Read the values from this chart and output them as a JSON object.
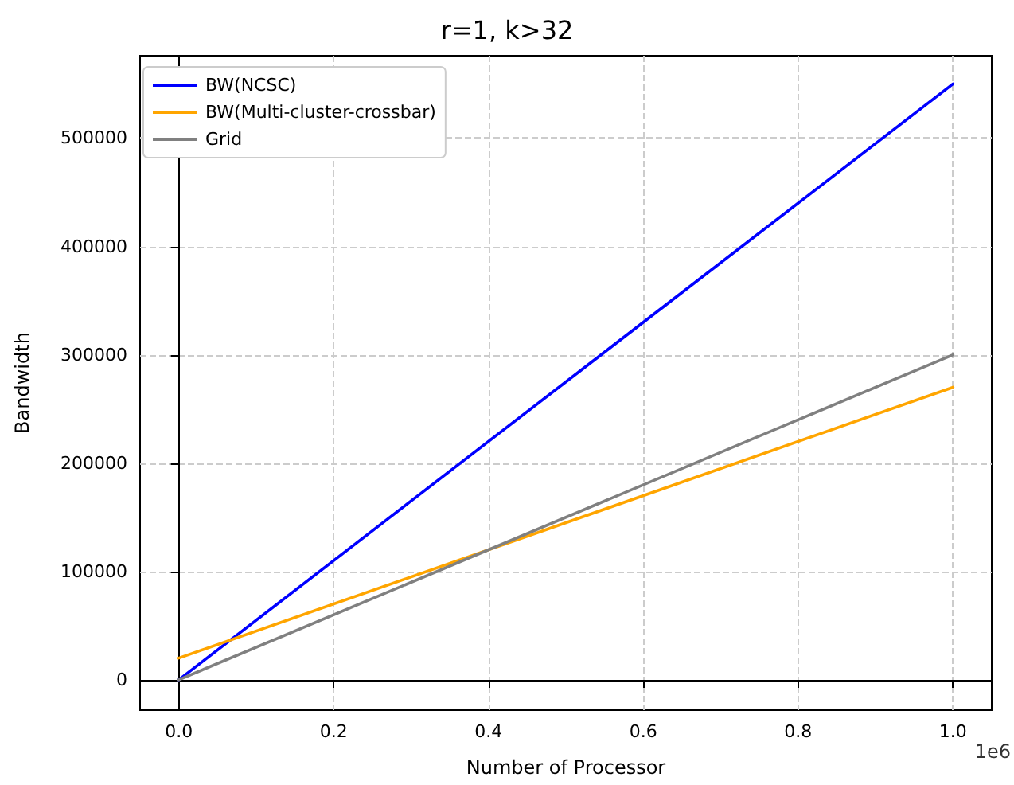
{
  "chart_data": {
    "type": "line",
    "title": "r=1, k>32",
    "xlabel": "Number of Processor",
    "ylabel": "Bandwidth",
    "annotations": [
      "1e6"
    ],
    "x": [
      0,
      1
    ],
    "series": [
      {
        "name": "BW(NCSC)",
        "color": "#0000ff",
        "values": [
          0,
          550000
        ]
      },
      {
        "name": "BW(Multi-cluster-crossbar)",
        "color": "#ffa500",
        "values": [
          20000,
          270000
        ]
      },
      {
        "name": "Grid",
        "color": "#808080",
        "values": [
          0,
          300000
        ]
      }
    ],
    "xlim": [
      -0.05,
      1.05
    ],
    "ylim": [
      -28000,
      576000
    ],
    "xticks": [
      {
        "value": 0,
        "label": "0.0"
      },
      0.2,
      0.4,
      0.6,
      0.8,
      {
        "value": 1,
        "label": "1.0"
      }
    ],
    "yticks": [
      0,
      100000,
      200000,
      300000,
      400000,
      500000
    ],
    "grid": true,
    "legend": "top left",
    "marker": "none",
    "line_style": "solid"
  }
}
